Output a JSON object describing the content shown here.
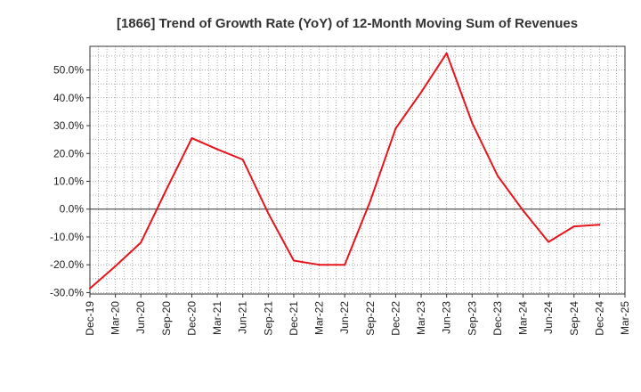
{
  "chart_data": {
    "type": "line",
    "title": "[1866]  Trend of Growth Rate (YoY) of 12-Month Moving Sum of Revenues",
    "xlabel": "",
    "ylabel": "",
    "x_tick_labels": [
      "Dec-19",
      "Mar-20",
      "Jun-20",
      "Sep-20",
      "Dec-20",
      "Mar-21",
      "Jun-21",
      "Sep-21",
      "Dec-21",
      "Mar-22",
      "Jun-22",
      "Sep-22",
      "Dec-22",
      "Mar-23",
      "Jun-23",
      "Sep-23",
      "Dec-23",
      "Mar-24",
      "Jun-24",
      "Sep-24",
      "Dec-24",
      "Mar-25"
    ],
    "y_tick_labels": [
      "-30.0%",
      "-20.0%",
      "-10.0%",
      "0.0%",
      "10.0%",
      "20.0%",
      "30.0%",
      "40.0%",
      "50.0%"
    ],
    "y_ticks": [
      -30,
      -20,
      -10,
      0,
      10,
      20,
      30,
      40,
      50
    ],
    "ylim": [
      -30.5,
      58.5
    ],
    "grid": true,
    "line_color": "#e8141b",
    "series": [
      {
        "x": [
          "Dec-19",
          "Mar-20",
          "Jun-20",
          "Sep-20",
          "Dec-20",
          "Mar-21",
          "Jun-21",
          "Sep-21",
          "Dec-21",
          "Mar-22",
          "Jun-22",
          "Sep-22",
          "Dec-22",
          "Mar-23",
          "Jun-23",
          "Sep-23",
          "Dec-23",
          "Mar-24",
          "Jun-24",
          "Sep-24",
          "Dec-24"
        ],
        "values": [
          -28.5,
          -20.5,
          -12.0,
          7.0,
          25.5,
          21.5,
          17.8,
          -1.5,
          -18.5,
          -20.0,
          -20.0,
          2.8,
          29.0,
          42.0,
          56.0,
          31.0,
          12.0,
          -0.5,
          -11.8,
          -6.2,
          -5.6
        ]
      }
    ]
  }
}
